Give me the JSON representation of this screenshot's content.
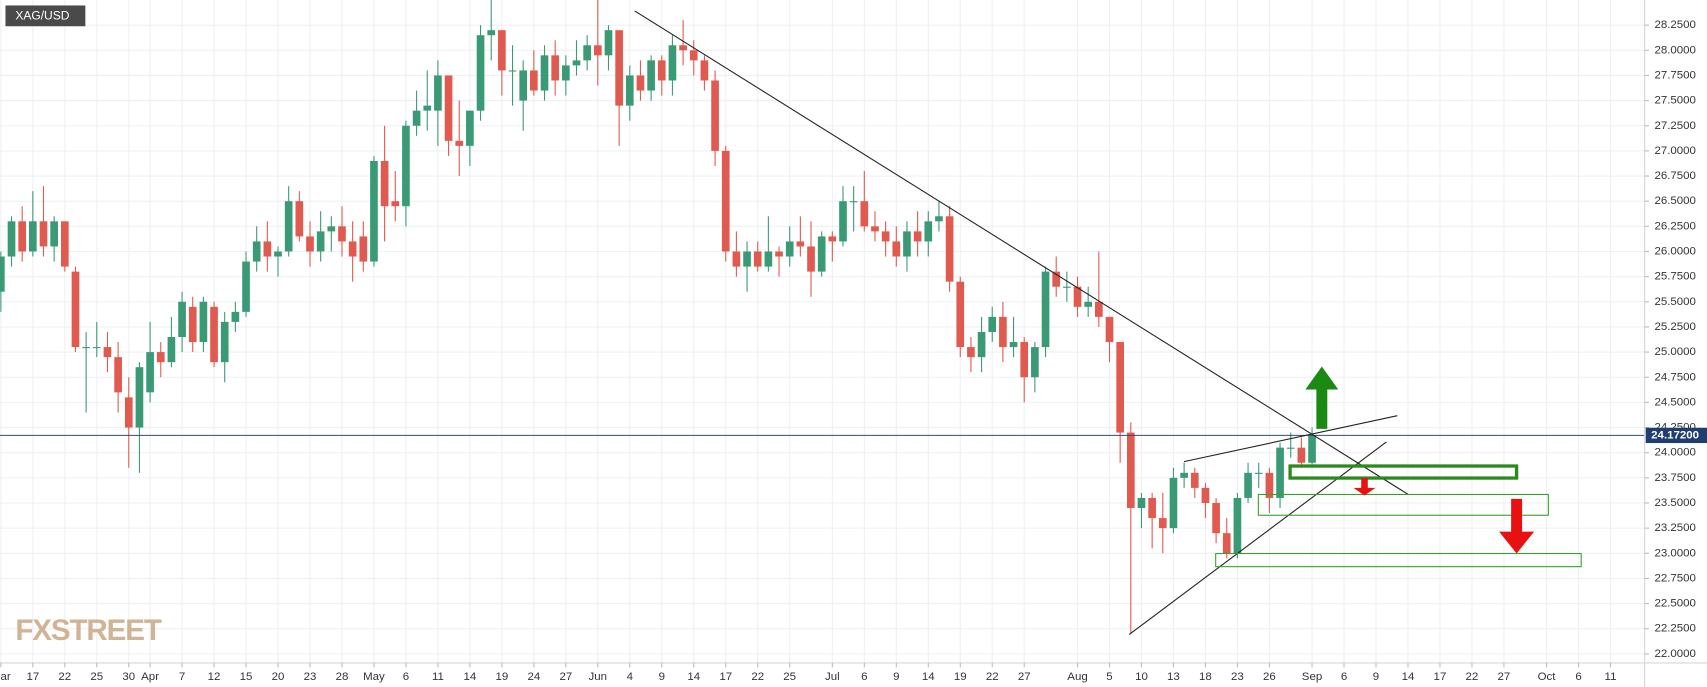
{
  "chart_data": {
    "type": "candlestick",
    "title": "XAG/USD",
    "watermark": "FXSTREET",
    "up_color": "#3a9a76",
    "down_color": "#e05a50",
    "grid": true,
    "x": [
      0,
      1,
      2,
      3,
      4,
      5,
      6,
      7,
      8,
      9,
      10,
      11,
      12,
      13,
      14,
      15,
      16,
      17,
      18,
      19,
      20,
      21,
      22,
      23,
      24,
      25,
      26,
      27,
      28,
      29,
      30,
      31,
      32,
      33,
      34,
      35,
      36,
      37,
      38,
      39,
      40,
      41,
      42,
      43,
      44,
      45,
      46,
      47,
      48,
      49,
      50,
      51,
      52,
      53,
      54,
      55,
      56,
      57,
      58,
      59,
      60,
      61,
      62,
      63,
      64,
      65,
      66,
      67,
      68,
      69,
      70,
      71,
      72,
      73,
      74,
      75,
      76,
      77,
      78,
      79,
      80,
      81,
      82,
      83,
      84,
      85,
      86,
      87,
      88,
      89,
      90,
      91,
      92,
      93,
      94,
      95,
      96,
      97,
      98,
      99,
      100,
      101,
      102,
      103,
      104,
      105,
      106,
      107,
      108,
      109,
      110,
      111,
      112,
      113,
      114,
      115,
      116,
      117,
      118,
      119,
      120,
      121,
      122,
      123
    ],
    "open": [
      25.6,
      25.95,
      26.3,
      26.0,
      26.3,
      26.05,
      26.3,
      25.8,
      25.05,
      25.05,
      25.05,
      24.95,
      24.55,
      24.25,
      24.6,
      25.0,
      24.9,
      25.15,
      25.45,
      25.1,
      25.45,
      24.9,
      25.3,
      25.4,
      25.9,
      26.1,
      25.95,
      26.0,
      26.5,
      26.15,
      26.0,
      26.2,
      26.25,
      26.1,
      26.15,
      25.9,
      26.9,
      26.5,
      26.45,
      27.25,
      27.4,
      27.4,
      27.75,
      27.1,
      27.05,
      27.4,
      28.15,
      28.2,
      27.8,
      27.5,
      27.8,
      27.6,
      27.95,
      27.7,
      27.85,
      27.9,
      28.05,
      27.95,
      28.2,
      27.45,
      27.75,
      27.6,
      27.9,
      27.7,
      28.05,
      28.0,
      27.9,
      27.7,
      27.0,
      26.0,
      25.85,
      26.0,
      25.85,
      26.0,
      25.95,
      26.1,
      26.05,
      25.8,
      26.15,
      26.1,
      26.5,
      26.5,
      26.25,
      26.2,
      26.1,
      25.95,
      26.2,
      26.1,
      26.3,
      26.35,
      25.7,
      25.05,
      24.95,
      25.2,
      25.35,
      25.05,
      25.1,
      24.75,
      25.05,
      25.8,
      25.65,
      25.65,
      25.45,
      25.5,
      25.35,
      25.1,
      24.2,
      23.45,
      23.55,
      23.35,
      23.25,
      23.75,
      23.8,
      23.65,
      23.5,
      23.2,
      23.0,
      23.55,
      23.8,
      23.8,
      23.55,
      24.05,
      24.05,
      23.9
    ],
    "high": [
      26.0,
      26.35,
      26.45,
      26.6,
      26.65,
      26.35,
      26.3,
      25.85,
      25.2,
      25.3,
      25.2,
      25.1,
      24.75,
      24.9,
      25.3,
      25.1,
      25.35,
      25.6,
      25.55,
      25.55,
      25.5,
      25.4,
      25.5,
      26.0,
      26.25,
      26.3,
      26.05,
      26.65,
      26.6,
      26.3,
      26.4,
      26.35,
      26.45,
      26.3,
      26.3,
      26.95,
      27.25,
      26.8,
      27.3,
      27.6,
      27.8,
      27.9,
      27.75,
      27.5,
      27.4,
      28.25,
      28.5,
      28.2,
      28.05,
      27.9,
      28.0,
      28.05,
      28.1,
      27.95,
      28.1,
      28.15,
      28.5,
      28.25,
      28.2,
      27.85,
      27.9,
      27.95,
      27.95,
      28.15,
      28.3,
      28.1,
      27.95,
      27.8,
      27.05,
      26.2,
      26.1,
      26.1,
      26.35,
      26.05,
      26.25,
      26.35,
      26.3,
      26.2,
      26.2,
      26.65,
      26.65,
      26.8,
      26.4,
      26.3,
      26.25,
      26.3,
      26.4,
      26.4,
      26.5,
      26.45,
      25.75,
      25.15,
      25.35,
      25.45,
      25.5,
      25.35,
      25.15,
      25.1,
      25.85,
      25.95,
      25.8,
      25.75,
      25.65,
      26.0,
      25.35,
      25.1,
      24.3,
      23.6,
      23.6,
      23.6,
      23.85,
      23.9,
      23.85,
      23.7,
      23.55,
      23.35,
      23.6,
      23.9,
      23.9,
      23.85,
      24.1,
      24.2,
      24.15,
      24.25
    ],
    "low": [
      25.4,
      25.85,
      25.9,
      25.95,
      25.95,
      25.9,
      25.8,
      25.0,
      24.4,
      24.95,
      24.8,
      24.4,
      23.85,
      23.8,
      24.5,
      24.75,
      24.85,
      25.0,
      25.0,
      25.0,
      24.85,
      24.7,
      25.2,
      25.35,
      25.8,
      25.8,
      25.75,
      25.95,
      26.1,
      25.85,
      25.9,
      26.0,
      25.95,
      25.7,
      25.8,
      25.85,
      26.1,
      26.3,
      26.25,
      27.15,
      27.2,
      27.05,
      26.95,
      26.75,
      26.85,
      27.3,
      27.9,
      27.55,
      27.45,
      27.2,
      27.55,
      27.5,
      27.55,
      27.55,
      27.75,
      27.8,
      27.65,
      27.8,
      27.05,
      27.3,
      27.5,
      27.5,
      27.55,
      27.55,
      27.85,
      27.75,
      27.6,
      26.85,
      25.9,
      25.75,
      25.6,
      25.8,
      25.8,
      25.75,
      25.85,
      25.95,
      25.55,
      25.75,
      25.9,
      26.05,
      26.2,
      26.2,
      26.1,
      25.95,
      25.85,
      25.8,
      25.95,
      25.95,
      26.2,
      25.6,
      24.95,
      24.8,
      24.8,
      25.1,
      24.9,
      24.95,
      24.5,
      24.6,
      24.95,
      25.55,
      25.5,
      25.35,
      25.35,
      25.25,
      24.9,
      23.9,
      22.2,
      23.25,
      23.05,
      23.0,
      23.2,
      23.65,
      23.55,
      23.35,
      23.1,
      22.95,
      22.95,
      23.5,
      23.65,
      23.4,
      23.45,
      23.95,
      23.85,
      23.85
    ],
    "close": [
      25.95,
      26.3,
      26.0,
      26.3,
      26.05,
      26.3,
      25.85,
      25.05,
      25.05,
      25.05,
      24.95,
      24.6,
      24.25,
      24.85,
      25.0,
      24.9,
      25.15,
      25.5,
      25.1,
      25.5,
      24.9,
      25.3,
      25.4,
      25.9,
      26.1,
      25.95,
      26.0,
      26.5,
      26.15,
      26.0,
      26.2,
      26.25,
      26.1,
      25.95,
      25.9,
      26.9,
      26.45,
      26.45,
      27.25,
      27.4,
      27.45,
      27.75,
      27.1,
      27.05,
      27.4,
      28.15,
      28.2,
      27.8,
      27.8,
      27.8,
      27.6,
      27.95,
      27.7,
      27.85,
      27.9,
      28.05,
      27.95,
      28.2,
      27.45,
      27.75,
      27.6,
      27.9,
      27.7,
      28.05,
      28.0,
      27.9,
      27.7,
      27.0,
      26.0,
      25.85,
      26.0,
      25.85,
      26.0,
      25.95,
      26.1,
      26.05,
      25.8,
      26.15,
      26.1,
      26.5,
      26.5,
      26.25,
      26.2,
      26.1,
      25.95,
      26.2,
      26.1,
      26.3,
      26.35,
      25.7,
      25.05,
      24.95,
      25.2,
      25.35,
      25.05,
      25.1,
      24.75,
      25.05,
      25.8,
      25.65,
      25.65,
      25.45,
      25.5,
      25.35,
      25.1,
      24.2,
      23.45,
      23.55,
      23.35,
      23.25,
      23.75,
      23.8,
      23.65,
      23.5,
      23.2,
      23.0,
      23.55,
      23.8,
      23.8,
      23.55,
      24.05,
      24.05,
      23.9,
      24.17
    ],
    "last_price": {
      "value": 24.172,
      "label": "24.17200"
    },
    "xlim": [
      -0.08,
      154.2
    ],
    "ylim": [
      21.91,
      28.5
    ],
    "xticks": [
      {
        "value": 0,
        "label": "Mar"
      },
      {
        "value": 3,
        "label": "17"
      },
      {
        "value": 6,
        "label": "22"
      },
      {
        "value": 9,
        "label": "25"
      },
      {
        "value": 12,
        "label": "30"
      },
      {
        "value": 14,
        "label": "Apr"
      },
      {
        "value": 17,
        "label": "7"
      },
      {
        "value": 20,
        "label": "12"
      },
      {
        "value": 23,
        "label": "15"
      },
      {
        "value": 26,
        "label": "20"
      },
      {
        "value": 29,
        "label": "23"
      },
      {
        "value": 32,
        "label": "28"
      },
      {
        "value": 35,
        "label": "May"
      },
      {
        "value": 38,
        "label": "6"
      },
      {
        "value": 41,
        "label": "11"
      },
      {
        "value": 44,
        "label": "14"
      },
      {
        "value": 47,
        "label": "19"
      },
      {
        "value": 50,
        "label": "24"
      },
      {
        "value": 53,
        "label": "27"
      },
      {
        "value": 56,
        "label": "Jun"
      },
      {
        "value": 59,
        "label": "4"
      },
      {
        "value": 62,
        "label": "9"
      },
      {
        "value": 65,
        "label": "14"
      },
      {
        "value": 68,
        "label": "17"
      },
      {
        "value": 71,
        "label": "22"
      },
      {
        "value": 74,
        "label": "25"
      },
      {
        "value": 78,
        "label": "Jul"
      },
      {
        "value": 81,
        "label": "6"
      },
      {
        "value": 84,
        "label": "9"
      },
      {
        "value": 87,
        "label": "14"
      },
      {
        "value": 90,
        "label": "19"
      },
      {
        "value": 93,
        "label": "22"
      },
      {
        "value": 96,
        "label": "27"
      },
      {
        "value": 101,
        "label": "Aug"
      },
      {
        "value": 104,
        "label": "5"
      },
      {
        "value": 107,
        "label": "10"
      },
      {
        "value": 110,
        "label": "13"
      },
      {
        "value": 113,
        "label": "18"
      },
      {
        "value": 116,
        "label": "23"
      },
      {
        "value": 119,
        "label": "26"
      },
      {
        "value": 123,
        "label": "Sep"
      },
      {
        "value": 126,
        "label": "6"
      },
      {
        "value": 129,
        "label": "9"
      },
      {
        "value": 132,
        "label": "14"
      },
      {
        "value": 135,
        "label": "17"
      },
      {
        "value": 138,
        "label": "22"
      },
      {
        "value": 141,
        "label": "27"
      },
      {
        "value": 145,
        "label": "Oct"
      },
      {
        "value": 148,
        "label": "6"
      },
      {
        "value": 151,
        "label": "11"
      }
    ],
    "yticks": [
      {
        "value": 22.0,
        "label": "22.0000"
      },
      {
        "value": 22.25,
        "label": "22.2500"
      },
      {
        "value": 22.5,
        "label": "22.5000"
      },
      {
        "value": 22.75,
        "label": "22.7500"
      },
      {
        "value": 23.0,
        "label": "23.0000"
      },
      {
        "value": 23.25,
        "label": "23.2500"
      },
      {
        "value": 23.5,
        "label": "23.5000"
      },
      {
        "value": 23.75,
        "label": "23.7500"
      },
      {
        "value": 24.0,
        "label": "24.0000"
      },
      {
        "value": 24.25,
        "label": "24.2500"
      },
      {
        "value": 24.5,
        "label": "24.5000"
      },
      {
        "value": 24.75,
        "label": "24.7500"
      },
      {
        "value": 25.0,
        "label": "25.0000"
      },
      {
        "value": 25.25,
        "label": "25.2500"
      },
      {
        "value": 25.5,
        "label": "25.5000"
      },
      {
        "value": 25.75,
        "label": "25.7500"
      },
      {
        "value": 26.0,
        "label": "26.0000"
      },
      {
        "value": 26.25,
        "label": "26.2500"
      },
      {
        "value": 26.5,
        "label": "26.5000"
      },
      {
        "value": 26.75,
        "label": "26.7500"
      },
      {
        "value": 27.0,
        "label": "27.0000"
      },
      {
        "value": 27.25,
        "label": "27.2500"
      },
      {
        "value": 27.5,
        "label": "27.5000"
      },
      {
        "value": 27.75,
        "label": "27.7500"
      },
      {
        "value": 28.0,
        "label": "28.0000"
      },
      {
        "value": 28.25,
        "label": "28.2500"
      }
    ]
  }
}
